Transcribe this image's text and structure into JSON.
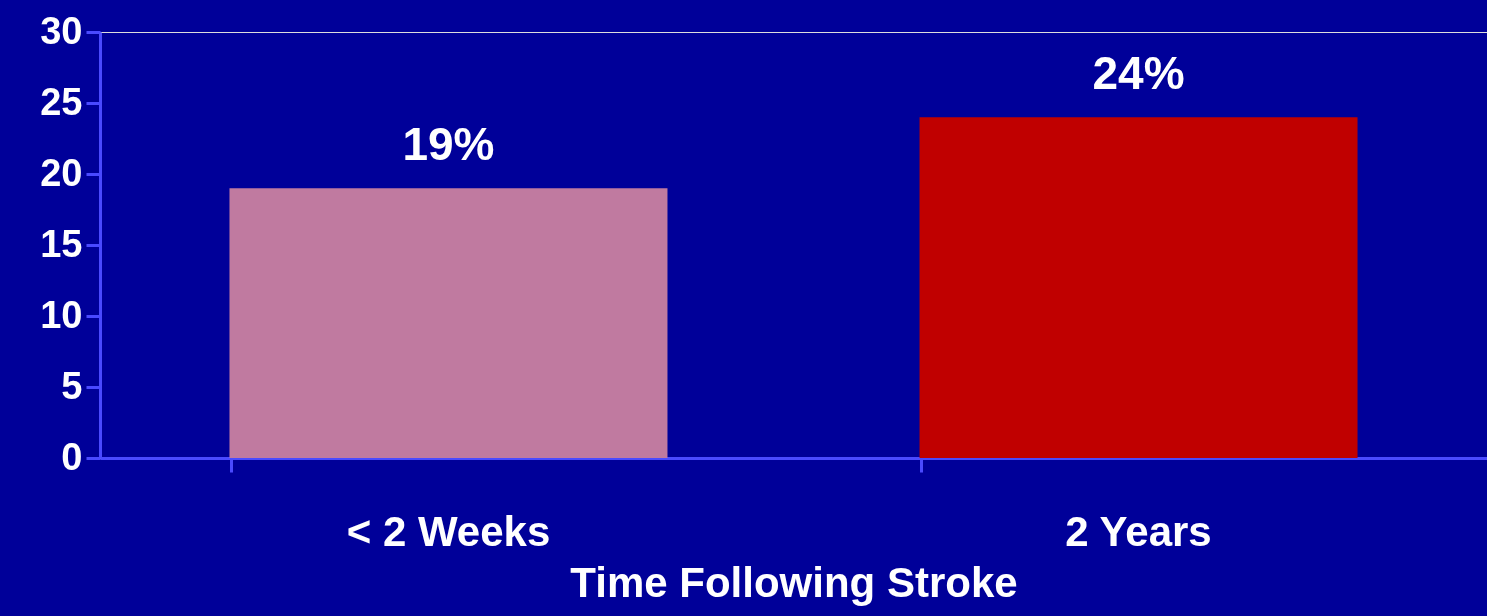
{
  "chart_data": {
    "type": "bar",
    "xlabel": "Time Following Stroke",
    "categories": [
      "< 2 Weeks",
      "2 Years"
    ],
    "values": [
      19,
      24
    ],
    "colors": [
      "#c07aa0",
      "#c00000"
    ],
    "value_labels": [
      "19%",
      "24%"
    ],
    "ylim": [
      0,
      30
    ],
    "yticks": [
      0,
      5,
      10,
      15,
      20,
      25,
      30
    ],
    "grid": false
  }
}
